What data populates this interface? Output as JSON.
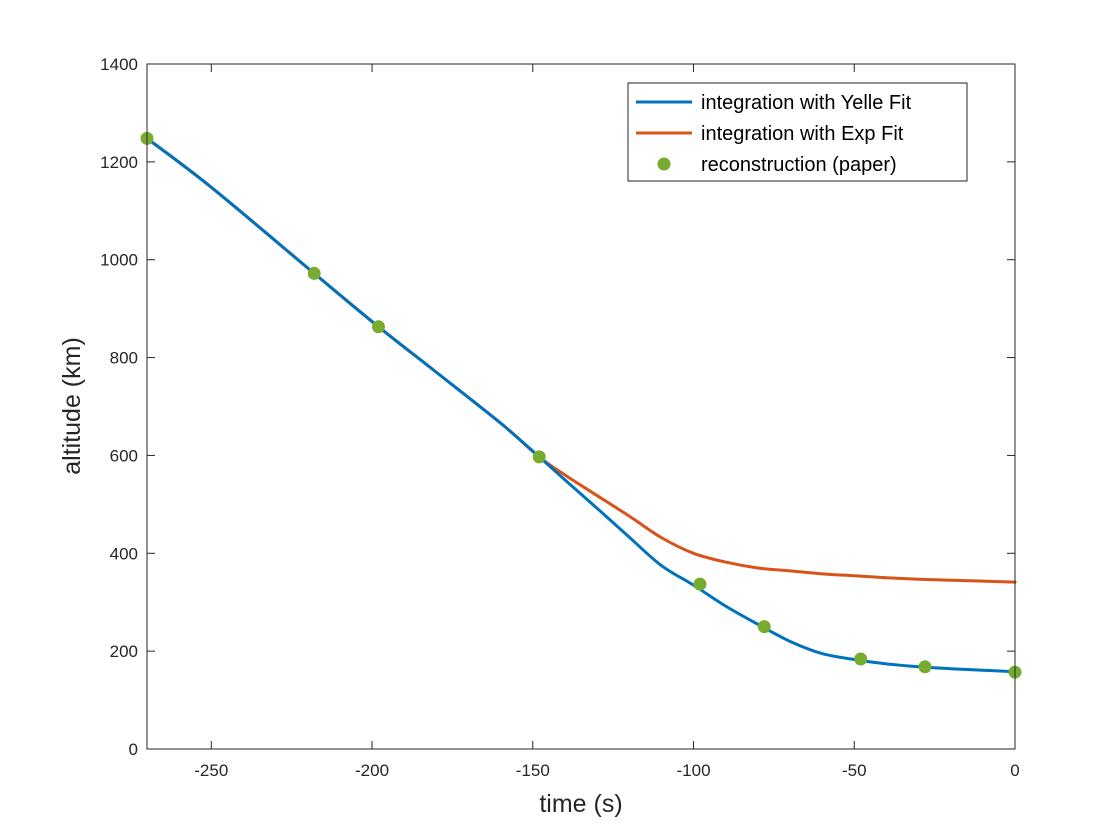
{
  "chart_data": {
    "type": "line",
    "xlabel": "time (s)",
    "ylabel": "altitude (km)",
    "xlim": [
      -270,
      0
    ],
    "ylim": [
      0,
      1400
    ],
    "xticks": [
      -250,
      -200,
      -150,
      -100,
      -50,
      0
    ],
    "yticks": [
      0,
      200,
      400,
      600,
      800,
      1000,
      1200,
      1400
    ],
    "grid": false,
    "box": true,
    "legend_position": "top-right",
    "series": [
      {
        "name": "integration with Yelle Fit",
        "style": "line",
        "color": "#0072BD",
        "x": [
          -270,
          -250,
          -218,
          -198,
          -180,
          -160,
          -148,
          -140,
          -130,
          -120,
          -110,
          -100,
          -90,
          -80,
          -70,
          -60,
          -50,
          -40,
          -30,
          -20,
          -10,
          0
        ],
        "y": [
          1248,
          1148,
          972,
          863,
          770,
          666,
          597,
          550,
          492,
          433,
          375,
          335,
          292,
          255,
          220,
          195,
          183,
          174,
          168,
          164,
          161,
          158
        ]
      },
      {
        "name": "integration with Exp Fit",
        "style": "line",
        "color": "#D95319",
        "x": [
          -270,
          -250,
          -218,
          -198,
          -180,
          -160,
          -148,
          -140,
          -130,
          -120,
          -110,
          -100,
          -90,
          -80,
          -70,
          -60,
          -50,
          -40,
          -30,
          -20,
          -10,
          0
        ],
        "y": [
          1248,
          1148,
          972,
          863,
          770,
          666,
          597,
          560,
          518,
          476,
          432,
          400,
          382,
          370,
          364,
          358,
          354,
          350,
          347,
          345,
          343,
          341
        ]
      },
      {
        "name": "reconstruction (paper)",
        "style": "markers",
        "color": "#77AC30",
        "x": [
          -270,
          -218,
          -198,
          -148,
          -98,
          -78,
          -48,
          -28,
          0
        ],
        "y": [
          1248,
          972,
          863,
          597,
          337,
          250,
          184,
          168,
          157
        ]
      }
    ]
  }
}
